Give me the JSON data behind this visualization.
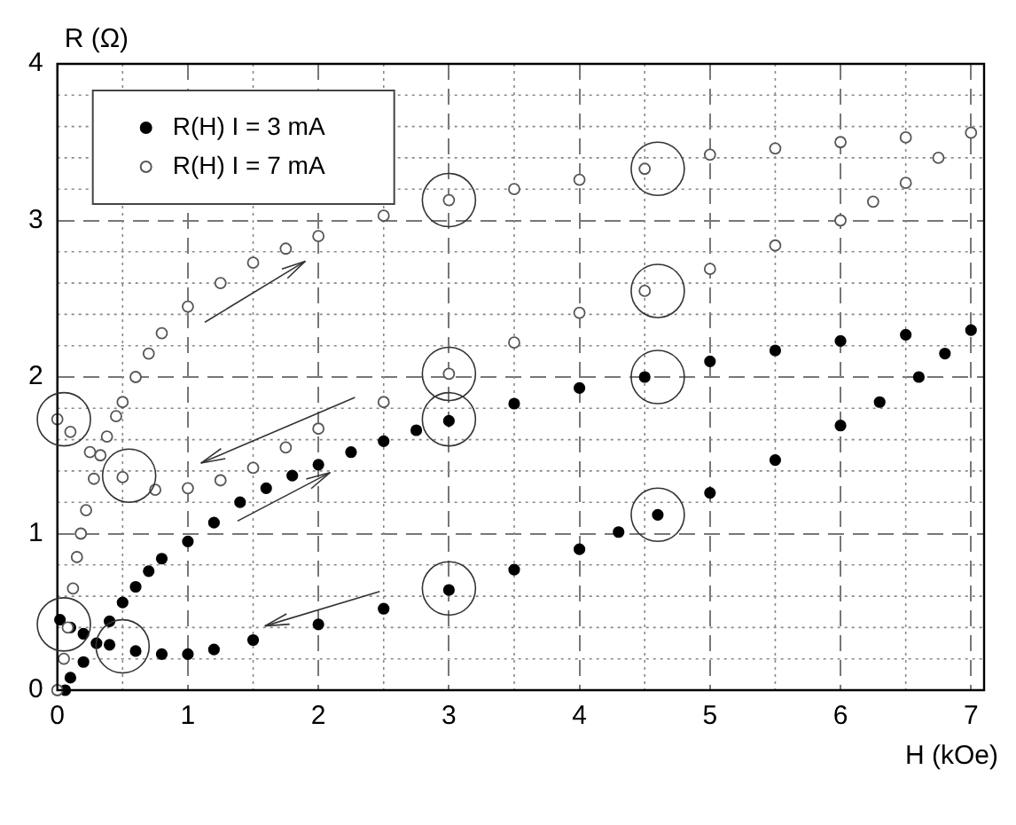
{
  "chart_data": {
    "type": "scatter",
    "xlabel": "H (kOe)",
    "ylabel": "R (Ω)",
    "xlim": [
      0,
      7.1
    ],
    "ylim": [
      0,
      4
    ],
    "xticks": [
      0,
      1,
      2,
      3,
      4,
      5,
      6,
      7
    ],
    "yticks": [
      0,
      1,
      2,
      3,
      4
    ],
    "grid": true,
    "legend": "top left",
    "series": [
      {
        "name": "R(H) I = 3 mA",
        "color": "#000000",
        "marker": "circle",
        "x": [
          0.06,
          0.1,
          0.2,
          0.3,
          0.4,
          0.5,
          0.6,
          0.7,
          0.8,
          1,
          1.2,
          1.4,
          1.6,
          1.8,
          2,
          2.25,
          2.5,
          2.75,
          3,
          3.5,
          4,
          4.5,
          5,
          5.5,
          6,
          6.5,
          7,
          6.8,
          6.6,
          6.3,
          6,
          5.5,
          5,
          4.6,
          4.3,
          4,
          3.5,
          3,
          2.5,
          2,
          1.5,
          1.2,
          1,
          0.8,
          0.6,
          0.4,
          0.2,
          0.1,
          0.02
        ],
        "values": [
          0,
          0.08,
          0.18,
          0.3,
          0.44,
          0.56,
          0.66,
          0.76,
          0.84,
          0.95,
          1.07,
          1.2,
          1.29,
          1.37,
          1.44,
          1.52,
          1.59,
          1.66,
          1.72,
          1.83,
          1.93,
          2,
          2.1,
          2.17,
          2.23,
          2.27,
          2.3,
          2.15,
          2,
          1.84,
          1.69,
          1.47,
          1.26,
          1.12,
          1.01,
          0.9,
          0.77,
          0.64,
          0.52,
          0.42,
          0.32,
          0.26,
          0.23,
          0.23,
          0.25,
          0.29,
          0.36,
          0.4,
          0.45
        ]
      },
      {
        "name": "R(H) I = 7 mA",
        "color": "#555555",
        "marker": "circle",
        "x": [
          0,
          0.05,
          0.08,
          0.12,
          0.15,
          0.18,
          0.22,
          0.28,
          0.33,
          0.38,
          0.45,
          0.5,
          0.6,
          0.7,
          0.8,
          1,
          1.25,
          1.5,
          1.75,
          2,
          2.5,
          3,
          3.5,
          4,
          4.5,
          5,
          5.5,
          6,
          6.5,
          7,
          6.75,
          6.5,
          6.25,
          6,
          5.5,
          5,
          4.5,
          4,
          3.5,
          3,
          2.5,
          2,
          1.75,
          1.5,
          1.25,
          1,
          0.75,
          0.5,
          0.25,
          0.1,
          0
        ],
        "values": [
          0,
          0.2,
          0.4,
          0.65,
          0.85,
          1,
          1.15,
          1.35,
          1.5,
          1.62,
          1.75,
          1.84,
          2,
          2.15,
          2.28,
          2.45,
          2.6,
          2.73,
          2.82,
          2.9,
          3.03,
          3.13,
          3.2,
          3.26,
          3.33,
          3.42,
          3.46,
          3.5,
          3.53,
          3.56,
          3.4,
          3.24,
          3.12,
          3,
          2.84,
          2.69,
          2.55,
          2.41,
          2.22,
          2.02,
          1.84,
          1.67,
          1.55,
          1.42,
          1.34,
          1.29,
          1.28,
          1.36,
          1.52,
          1.65,
          1.73
        ]
      }
    ]
  }
}
